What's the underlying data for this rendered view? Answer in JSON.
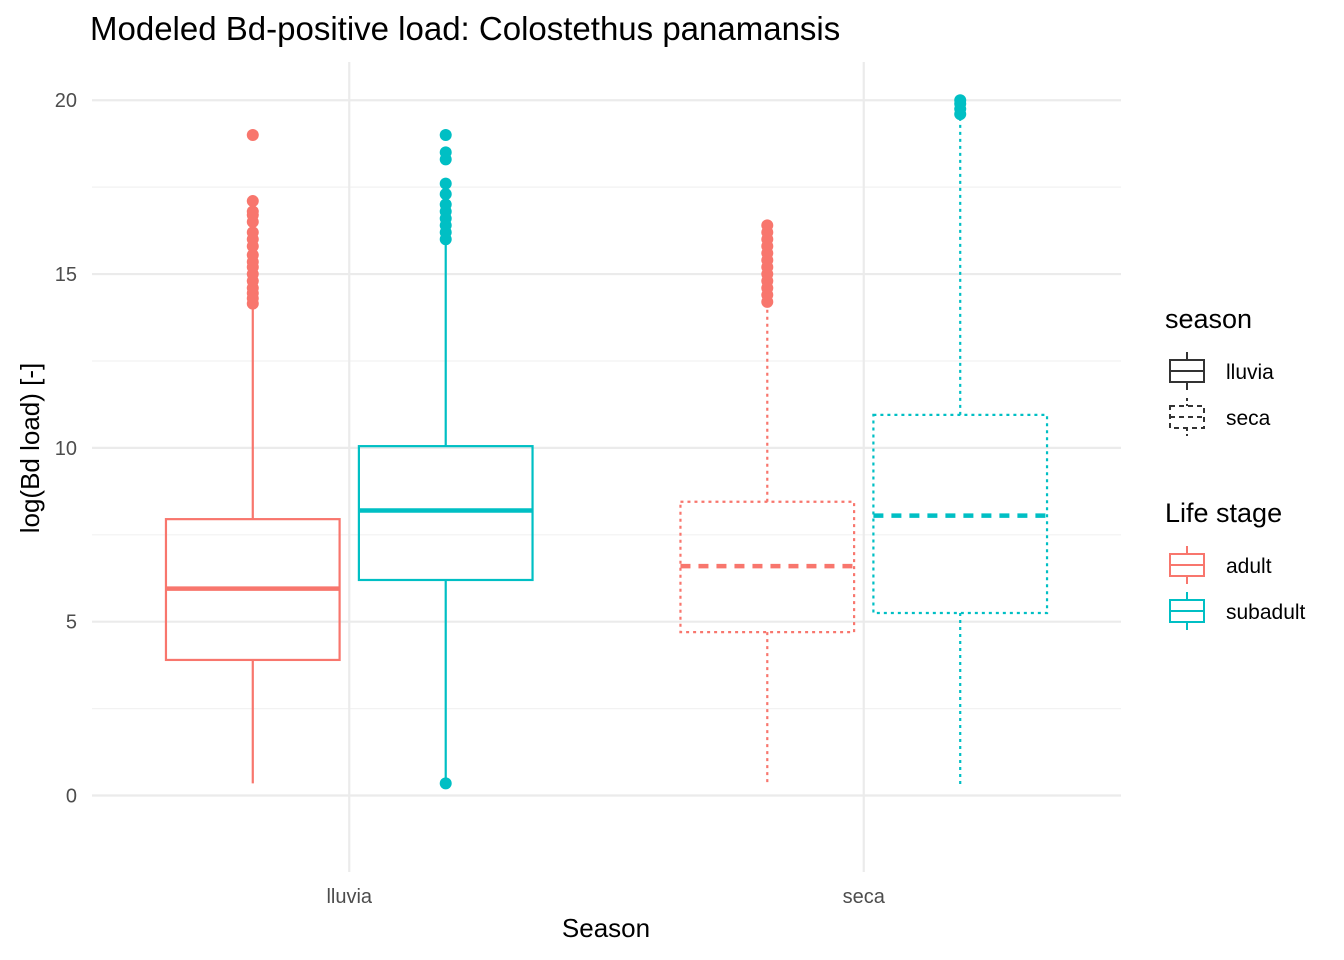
{
  "chart_data": {
    "type": "boxplot",
    "title": "Modeled Bd-positive load: Colostethus panamansis",
    "xlabel": "Season",
    "ylabel": "log(Bd load) [-]",
    "categories": [
      "lluvia",
      "seca"
    ],
    "ylim": [
      -2.2,
      21.1
    ],
    "yticks": [
      0,
      5,
      10,
      15,
      20
    ],
    "grid": true,
    "legend_position": "right",
    "legends": [
      {
        "title": "season",
        "items": [
          {
            "label": "lluvia",
            "linetype": "solid"
          },
          {
            "label": "seca",
            "linetype": "dashed"
          }
        ]
      },
      {
        "title": "Life stage",
        "items": [
          {
            "label": "adult",
            "color": "#F8766D"
          },
          {
            "label": "subadult",
            "color": "#00BFC4"
          }
        ]
      }
    ],
    "series": [
      {
        "name": "adult",
        "color": "#F8766D",
        "boxes": [
          {
            "category": "lluvia",
            "linetype": "solid",
            "min": 0.35,
            "q1": 3.9,
            "median": 5.95,
            "q3": 7.95,
            "max": 14.1,
            "outliers": [
              14.15,
              14.3,
              14.45,
              14.6,
              14.8,
              15.0,
              15.2,
              15.35,
              15.55,
              15.8,
              16.0,
              16.2,
              16.5,
              16.7,
              16.8,
              17.1,
              19.0
            ]
          },
          {
            "category": "seca",
            "linetype": "dashed",
            "min": 0.3,
            "q1": 4.7,
            "median": 6.6,
            "q3": 8.45,
            "max": 14.1,
            "outliers": [
              14.2,
              14.4,
              14.6,
              14.8,
              15.0,
              15.2,
              15.4,
              15.6,
              15.8,
              16.0,
              16.2,
              16.4
            ]
          }
        ]
      },
      {
        "name": "subadult",
        "color": "#00BFC4",
        "boxes": [
          {
            "category": "lluvia",
            "linetype": "solid",
            "min": 0.35,
            "q1": 6.2,
            "median": 8.2,
            "q3": 10.05,
            "max": 15.9,
            "outliers": [
              0.35,
              16.0,
              16.2,
              16.4,
              16.6,
              16.8,
              17.0,
              17.3,
              17.6,
              18.3,
              18.5,
              19.0
            ]
          },
          {
            "category": "seca",
            "linetype": "dashed",
            "min": 0.3,
            "q1": 5.25,
            "median": 8.05,
            "q3": 10.95,
            "max": 19.5,
            "outliers": [
              19.6,
              19.75,
              19.9,
              20.0
            ]
          }
        ]
      }
    ]
  }
}
